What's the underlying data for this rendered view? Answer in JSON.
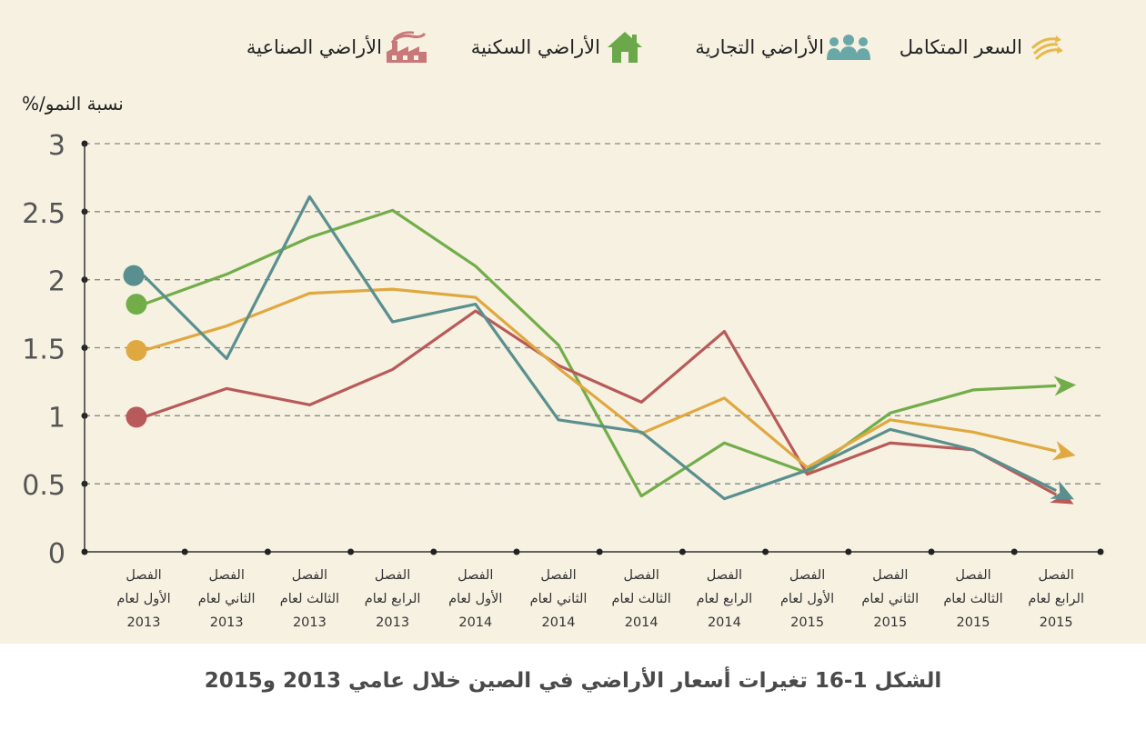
{
  "legend": [
    {
      "label": "السعر المتكامل",
      "icon": "price-arrows-icon",
      "color": "#e8b84a"
    },
    {
      "label": "الأراضي التجارية",
      "icon": "people-icon",
      "color": "#6aa8a8"
    },
    {
      "label": "الأراضي السكنية",
      "icon": "house-icon",
      "color": "#6aa84a"
    },
    {
      "label": "الأراضي الصناعية",
      "icon": "factory-icon",
      "color": "#c87878"
    }
  ],
  "caption": "الشكل 1-16 تغيرات أسعار الأراضي في الصين خلال عامي 2013 و2015",
  "chart_data": {
    "type": "line",
    "ylabel": "نسبة النمو/%",
    "ylim": [
      0,
      3
    ],
    "yticks": [
      "0",
      "0.5",
      "1",
      "1.5",
      "2",
      "2.5",
      "3"
    ],
    "grid": true,
    "legend_position": "top",
    "categories": [
      {
        "line1": "الفصل",
        "line2": "الأول لعام",
        "line3": "2013"
      },
      {
        "line1": "الفصل",
        "line2": "الثاني لعام",
        "line3": "2013"
      },
      {
        "line1": "الفصل",
        "line2": "الثالث لعام",
        "line3": "2013"
      },
      {
        "line1": "الفصل",
        "line2": "الرابع لعام",
        "line3": "2013"
      },
      {
        "line1": "الفصل",
        "line2": "الأول لعام",
        "line3": "2014"
      },
      {
        "line1": "الفصل",
        "line2": "الثاني لعام",
        "line3": "2014"
      },
      {
        "line1": "الفصل",
        "line2": "الثالث لعام",
        "line3": "2014"
      },
      {
        "line1": "الفصل",
        "line2": "الرابع لعام",
        "line3": "2014"
      },
      {
        "line1": "الفصل",
        "line2": "الأول لعام",
        "line3": "2015"
      },
      {
        "line1": "الفصل",
        "line2": "الثاني لعام",
        "line3": "2015"
      },
      {
        "line1": "الفصل",
        "line2": "الثالث لعام",
        "line3": "2015"
      },
      {
        "line1": "الفصل",
        "line2": "الرابع لعام",
        "line3": "2015"
      }
    ],
    "series": [
      {
        "name": "السعر المتكامل",
        "color": "#e0a840",
        "values": [
          1.48,
          1.66,
          1.9,
          1.93,
          1.87,
          1.35,
          0.87,
          1.13,
          0.62,
          0.97,
          0.88,
          0.74
        ]
      },
      {
        "name": "الأراضي التجارية",
        "color": "#5a8f8f",
        "values": [
          2.03,
          1.42,
          2.61,
          1.69,
          1.82,
          0.97,
          0.88,
          0.39,
          0.6,
          0.9,
          0.75,
          0.45
        ]
      },
      {
        "name": "الأراضي السكنية",
        "color": "#72ad4a",
        "values": [
          1.82,
          2.04,
          2.31,
          2.51,
          2.1,
          1.52,
          0.41,
          0.8,
          0.58,
          1.02,
          1.19,
          1.22
        ]
      },
      {
        "name": "الأراضي الصناعية",
        "color": "#b85a5a",
        "values": [
          0.99,
          1.2,
          1.08,
          1.34,
          1.77,
          1.37,
          1.1,
          1.62,
          0.57,
          0.8,
          0.75,
          0.42
        ]
      }
    ]
  }
}
